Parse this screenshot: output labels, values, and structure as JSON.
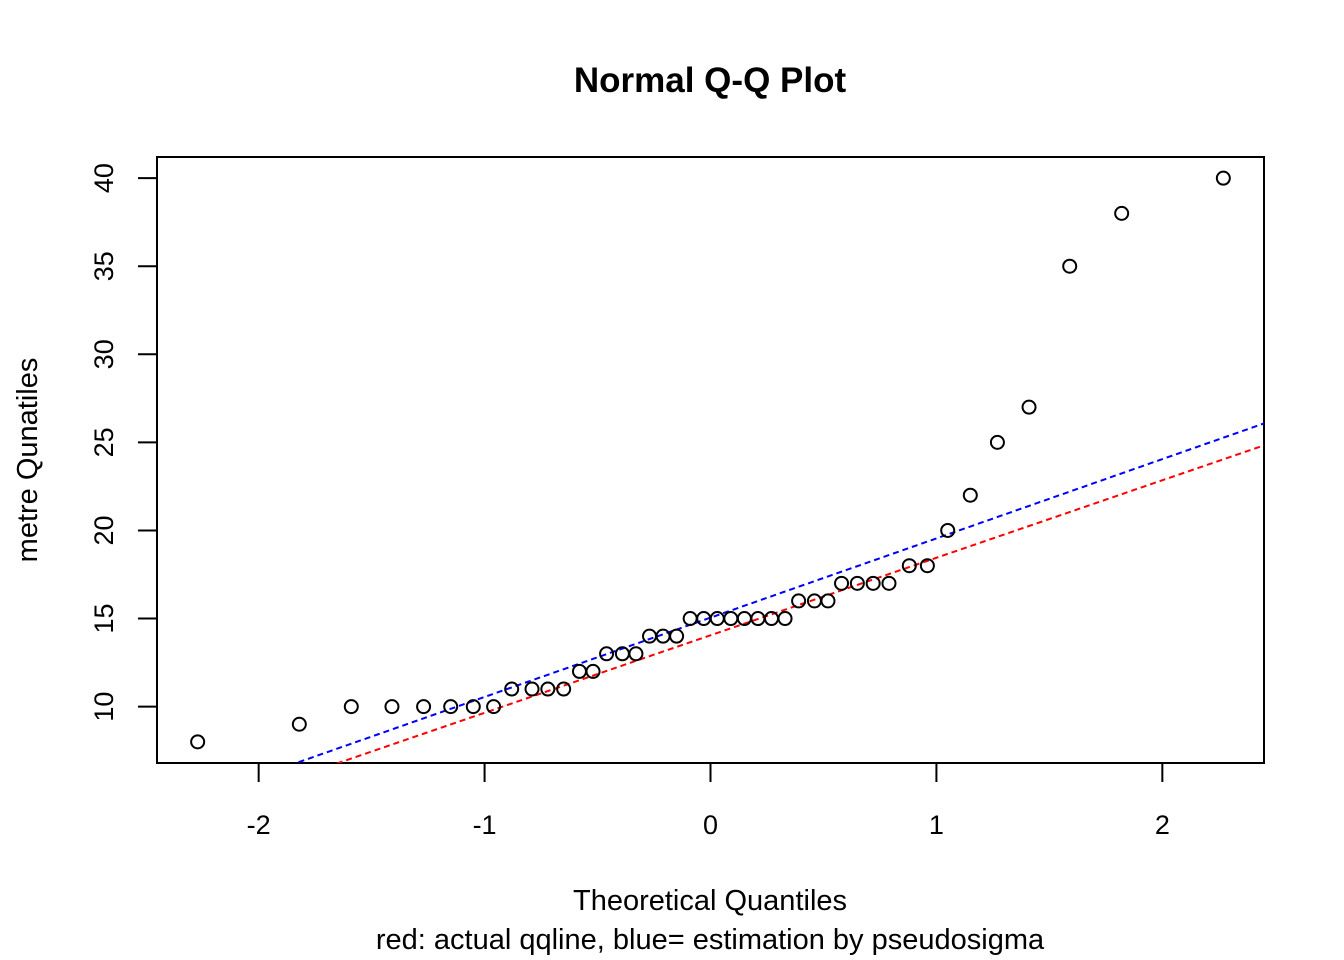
{
  "chart_data": {
    "type": "scatter",
    "title": "Normal Q-Q Plot",
    "xlabel": "Theoretical Quantiles",
    "subtitle": "red: actual qqline, blue= estimation by pseudosigma",
    "ylabel": "metre Qunatiles",
    "xlim": [
      -2.45,
      2.45
    ],
    "ylim": [
      6.8,
      41.2
    ],
    "xticks": [
      -2,
      -1,
      0,
      1,
      2
    ],
    "yticks": [
      10,
      15,
      20,
      25,
      30,
      35,
      40
    ],
    "points": {
      "x": [
        -2.27,
        -1.82,
        -1.59,
        -1.41,
        -1.27,
        -1.15,
        -1.05,
        -0.96,
        -0.88,
        -0.79,
        -0.72,
        -0.65,
        -0.58,
        -0.52,
        -0.46,
        -0.39,
        -0.33,
        -0.27,
        -0.21,
        -0.15,
        -0.09,
        -0.03,
        0.03,
        0.09,
        0.15,
        0.21,
        0.27,
        0.33,
        0.39,
        0.46,
        0.52,
        0.58,
        0.65,
        0.72,
        0.79,
        0.88,
        0.96,
        1.05,
        1.15,
        1.27,
        1.41,
        1.59,
        1.82,
        2.27
      ],
      "y": [
        8,
        9,
        10,
        10,
        10,
        10,
        10,
        10,
        11,
        11,
        11,
        11,
        12,
        12,
        13,
        13,
        13,
        14,
        14,
        14,
        15,
        15,
        15,
        15,
        15,
        15,
        15,
        15,
        16,
        16,
        16,
        17,
        17,
        17,
        17,
        18,
        18,
        20,
        22,
        25,
        27,
        35,
        38,
        40
      ]
    },
    "lines": [
      {
        "color": "#ff0000",
        "style": "dashed",
        "intercept": 14.05,
        "slope": 4.4
      },
      {
        "color": "#0000ff",
        "style": "dashed",
        "intercept": 15.05,
        "slope": 4.5
      }
    ],
    "colors": {
      "point_stroke": "#000000",
      "red_line": "#ff0000",
      "blue_line": "#0000ff"
    }
  }
}
